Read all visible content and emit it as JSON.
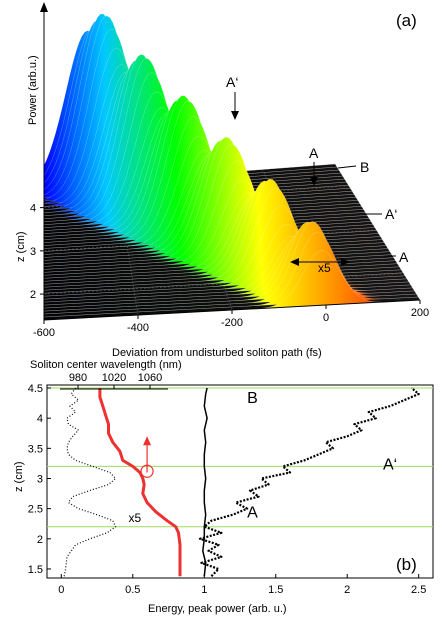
{
  "chart_data": [
    {
      "type": "surface",
      "panel_label": "(a)",
      "zlabel": "Power (arb.u.)",
      "ylabel": "z (cm)",
      "xlabel": "Deviation from undisturbed soliton path (fs)",
      "x_ticks": [
        "-600",
        "-400",
        "-200",
        "0",
        "200"
      ],
      "x_tick_values": [
        -600,
        -400,
        -200,
        0,
        200
      ],
      "xlim": [
        -600,
        200
      ],
      "z_ticks": [
        "2",
        "3",
        "4"
      ],
      "z_tick_values": [
        2,
        3,
        4
      ],
      "zlim": [
        1.4,
        4.5
      ],
      "annotations": {
        "a_prime_top": "A‘",
        "a_top": "A",
        "b_right": "B",
        "a_prime_right": "A‘",
        "a_right": "A",
        "scale": "x5"
      },
      "surface_colormap": [
        "#0000ff",
        "#00c8ff",
        "#00ff00",
        "#ffff00",
        "#ff8000",
        "#ff0000"
      ]
    },
    {
      "type": "line",
      "panel_label": "(b)",
      "ylabel": "z (cm)",
      "xlabel": "Energy, peak power (arb. u.)",
      "top_axis_label": "Soliton center wavelength (nm)",
      "top_ticks": [
        "980",
        "1020",
        "1060"
      ],
      "top_tick_values": [
        980,
        1020,
        1060
      ],
      "top_lim": [
        960,
        1080
      ],
      "x_ticks": [
        "0",
        "0.5",
        "1",
        "1.5",
        "2",
        "2.5"
      ],
      "x_tick_values": [
        0,
        0.5,
        1,
        1.5,
        2,
        2.5
      ],
      "xlim": [
        -0.1,
        2.6
      ],
      "y_ticks": [
        "1.5",
        "2",
        "2.5",
        "3",
        "3.5",
        "4",
        "4.5"
      ],
      "y_tick_values": [
        1.5,
        2,
        2.5,
        3,
        3.5,
        4,
        4.5
      ],
      "ylim": [
        1.35,
        4.55
      ],
      "horizontal_lines_z": [
        2.2,
        3.2,
        4.5
      ],
      "region_labels": [
        {
          "text": "A",
          "x": 1.3,
          "z": 2.35
        },
        {
          "text": "A‘",
          "x": 2.25,
          "z": 3.15
        },
        {
          "text": "B",
          "x": 1.3,
          "z": 4.25
        }
      ],
      "scale_label": {
        "text": "x5",
        "x": 0.47,
        "z": 2.28
      },
      "circle_marker": {
        "x": 0.6,
        "z": 3.12
      },
      "series": [
        {
          "style": "dotted-thin",
          "color": "#000000",
          "z": [
            1.38,
            1.5,
            1.7,
            1.9,
            2.0,
            2.1,
            2.2,
            2.3,
            2.4,
            2.5,
            2.6,
            2.7,
            2.8,
            2.9,
            3.0,
            3.1,
            3.2,
            3.3,
            3.4,
            3.5,
            3.6,
            3.7,
            3.8,
            3.9,
            4.0,
            4.1,
            4.2,
            4.3,
            4.4,
            4.5
          ],
          "x": [
            0.02,
            0.03,
            0.04,
            0.1,
            0.2,
            0.32,
            0.38,
            0.36,
            0.25,
            0.12,
            0.05,
            0.08,
            0.2,
            0.33,
            0.38,
            0.34,
            0.22,
            0.1,
            0.05,
            0.04,
            0.05,
            0.08,
            0.12,
            0.05,
            0.04,
            0.1,
            0.06,
            0.12,
            0.07,
            0.1
          ]
        },
        {
          "style": "solid-thick",
          "color": "#ee3030",
          "z": [
            1.38,
            1.5,
            1.7,
            1.9,
            2.1,
            2.2,
            2.3,
            2.45,
            2.6,
            2.75,
            2.9,
            3.0,
            3.1,
            3.2,
            3.3,
            3.45,
            3.6,
            3.75,
            3.9,
            4.05,
            4.2,
            4.35,
            4.5
          ],
          "x": [
            0.83,
            0.83,
            0.83,
            0.83,
            0.82,
            0.8,
            0.74,
            0.66,
            0.6,
            0.57,
            0.58,
            0.57,
            0.55,
            0.5,
            0.43,
            0.41,
            0.36,
            0.33,
            0.33,
            0.31,
            0.29,
            0.27,
            0.27
          ]
        },
        {
          "style": "solid",
          "color": "#000000",
          "z": [
            1.38,
            1.6,
            1.8,
            2.0,
            2.2,
            2.4,
            2.6,
            2.8,
            3.0,
            3.2,
            3.4,
            3.6,
            3.8,
            4.0,
            4.2,
            4.4,
            4.5
          ],
          "x": [
            1.0,
            1.01,
            0.99,
            1.0,
            1.0,
            1.01,
            1.0,
            1.0,
            1.01,
            1.0,
            1.0,
            1.01,
            1.0,
            1.02,
            1.0,
            1.01,
            1.02
          ]
        },
        {
          "style": "dotted-thick",
          "color": "#000000",
          "z": [
            1.38,
            1.5,
            1.6,
            1.7,
            1.8,
            1.9,
            2.0,
            2.1,
            2.2,
            2.3,
            2.4,
            2.5,
            2.6,
            2.7,
            2.8,
            2.9,
            3.0,
            3.1,
            3.2,
            3.3,
            3.4,
            3.5,
            3.6,
            3.7,
            3.8,
            3.9,
            4.0,
            4.1,
            4.2,
            4.3,
            4.4,
            4.5
          ],
          "x": [
            1.05,
            1.1,
            0.98,
            1.12,
            1.03,
            1.1,
            0.97,
            1.12,
            1.0,
            1.05,
            1.2,
            1.3,
            1.22,
            1.38,
            1.32,
            1.45,
            1.4,
            1.6,
            1.55,
            1.7,
            1.8,
            1.9,
            1.85,
            2.0,
            2.1,
            2.05,
            2.2,
            2.15,
            2.3,
            2.4,
            2.5,
            2.45
          ]
        }
      ],
      "arrow": {
        "x": 0.6,
        "z_from": 3.1,
        "z_to": 3.7,
        "color": "#ee3030"
      }
    }
  ]
}
